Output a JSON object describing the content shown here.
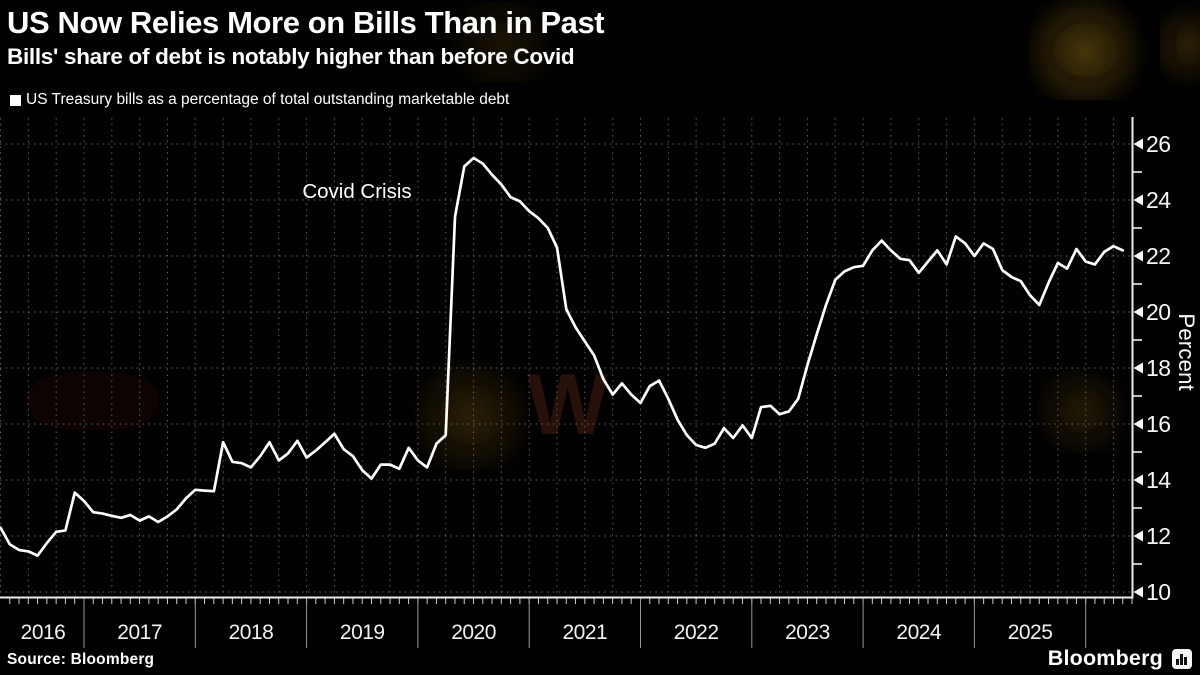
{
  "header": {
    "title": "US Now Relies More on Bills Than in Past",
    "subtitle": "Bills' share of debt is notably higher than before Covid"
  },
  "legend": {
    "swatch_color": "#ffffff"
  },
  "source": {
    "text": "Source: Bloomberg"
  },
  "brand": {
    "logo_text": "Bloomberg",
    "logo_icon": "bloomberg-bars-icon"
  },
  "colors": {
    "background": "#000000",
    "line": "#ffffff",
    "text": "#ffffff",
    "gridline": "#6f6f6f",
    "watermark": "#8c6914"
  },
  "axes": {
    "x": {
      "year_labels": [
        "2016",
        "2017",
        "2018",
        "2019",
        "2020",
        "2021",
        "2022",
        "2023",
        "2024",
        "2025"
      ]
    },
    "y": {
      "label": "Percent",
      "major_ticks": [
        26,
        24,
        22,
        20,
        18,
        16,
        14,
        12,
        10
      ]
    }
  },
  "chart_data": {
    "type": "line",
    "title": "US Now Relies More on Bills Than in Past",
    "subtitle": "Bills' share of debt is notably higher than before Covid",
    "xlabel": "",
    "ylabel": "Percent",
    "ylim": [
      10,
      26
    ],
    "xlim": [
      2016.25,
      2026.45
    ],
    "grid": "dotted; horizontal every 2 pts, vertical quarterly, year separators on axis",
    "legend_position": "top-left",
    "annotations": [
      {
        "text": "Covid Crisis",
        "x": 2019.45,
        "y": 24.3
      }
    ],
    "series": [
      {
        "name": "US Treasury bills as a percentage of total outstanding marketable debt",
        "color": "#ffffff",
        "points": [
          [
            2016.25,
            12.3
          ],
          [
            2016.333,
            11.7
          ],
          [
            2016.417,
            11.5
          ],
          [
            2016.5,
            11.45
          ],
          [
            2016.583,
            11.3
          ],
          [
            2016.667,
            11.75
          ],
          [
            2016.75,
            12.15
          ],
          [
            2016.833,
            12.2
          ],
          [
            2016.917,
            13.55
          ],
          [
            2017.0,
            13.25
          ],
          [
            2017.083,
            12.85
          ],
          [
            2017.167,
            12.8
          ],
          [
            2017.25,
            12.72
          ],
          [
            2017.333,
            12.65
          ],
          [
            2017.417,
            12.75
          ],
          [
            2017.5,
            12.55
          ],
          [
            2017.583,
            12.7
          ],
          [
            2017.667,
            12.5
          ],
          [
            2017.75,
            12.7
          ],
          [
            2017.833,
            12.95
          ],
          [
            2017.917,
            13.35
          ],
          [
            2018.0,
            13.65
          ],
          [
            2018.083,
            13.62
          ],
          [
            2018.167,
            13.6
          ],
          [
            2018.25,
            15.35
          ],
          [
            2018.333,
            14.65
          ],
          [
            2018.417,
            14.6
          ],
          [
            2018.5,
            14.45
          ],
          [
            2018.583,
            14.85
          ],
          [
            2018.667,
            15.35
          ],
          [
            2018.75,
            14.7
          ],
          [
            2018.833,
            14.95
          ],
          [
            2018.917,
            15.4
          ],
          [
            2019.0,
            14.8
          ],
          [
            2019.083,
            15.05
          ],
          [
            2019.167,
            15.35
          ],
          [
            2019.25,
            15.65
          ],
          [
            2019.333,
            15.1
          ],
          [
            2019.417,
            14.85
          ],
          [
            2019.5,
            14.35
          ],
          [
            2019.583,
            14.05
          ],
          [
            2019.667,
            14.55
          ],
          [
            2019.75,
            14.55
          ],
          [
            2019.833,
            14.4
          ],
          [
            2019.917,
            15.15
          ],
          [
            2020.0,
            14.7
          ],
          [
            2020.083,
            14.45
          ],
          [
            2020.167,
            15.3
          ],
          [
            2020.25,
            15.6
          ],
          [
            2020.333,
            23.4
          ],
          [
            2020.417,
            25.2
          ],
          [
            2020.5,
            25.5
          ],
          [
            2020.583,
            25.3
          ],
          [
            2020.667,
            24.9
          ],
          [
            2020.75,
            24.55
          ],
          [
            2020.833,
            24.1
          ],
          [
            2020.917,
            23.95
          ],
          [
            2021.0,
            23.6
          ],
          [
            2021.083,
            23.35
          ],
          [
            2021.167,
            23.0
          ],
          [
            2021.25,
            22.3
          ],
          [
            2021.333,
            20.1
          ],
          [
            2021.417,
            19.45
          ],
          [
            2021.5,
            18.95
          ],
          [
            2021.583,
            18.45
          ],
          [
            2021.667,
            17.6
          ],
          [
            2021.75,
            17.05
          ],
          [
            2021.833,
            17.45
          ],
          [
            2021.917,
            17.05
          ],
          [
            2022.0,
            16.75
          ],
          [
            2022.083,
            17.35
          ],
          [
            2022.167,
            17.55
          ],
          [
            2022.25,
            16.9
          ],
          [
            2022.333,
            16.15
          ],
          [
            2022.417,
            15.6
          ],
          [
            2022.5,
            15.25
          ],
          [
            2022.583,
            15.15
          ],
          [
            2022.667,
            15.3
          ],
          [
            2022.75,
            15.85
          ],
          [
            2022.833,
            15.5
          ],
          [
            2022.917,
            15.95
          ],
          [
            2023.0,
            15.5
          ],
          [
            2023.083,
            16.6
          ],
          [
            2023.167,
            16.65
          ],
          [
            2023.25,
            16.35
          ],
          [
            2023.333,
            16.45
          ],
          [
            2023.417,
            16.9
          ],
          [
            2023.5,
            18.1
          ],
          [
            2023.583,
            19.2
          ],
          [
            2023.667,
            20.25
          ],
          [
            2023.75,
            21.15
          ],
          [
            2023.833,
            21.45
          ],
          [
            2023.917,
            21.6
          ],
          [
            2024.0,
            21.65
          ],
          [
            2024.083,
            22.2
          ],
          [
            2024.167,
            22.55
          ],
          [
            2024.25,
            22.2
          ],
          [
            2024.333,
            21.9
          ],
          [
            2024.417,
            21.85
          ],
          [
            2024.5,
            21.4
          ],
          [
            2024.583,
            21.8
          ],
          [
            2024.667,
            22.2
          ],
          [
            2024.75,
            21.7
          ],
          [
            2024.833,
            22.7
          ],
          [
            2024.917,
            22.45
          ],
          [
            2025.0,
            22.0
          ],
          [
            2025.083,
            22.45
          ],
          [
            2025.167,
            22.25
          ],
          [
            2025.25,
            21.5
          ],
          [
            2025.333,
            21.25
          ],
          [
            2025.417,
            21.1
          ],
          [
            2025.5,
            20.6
          ],
          [
            2025.583,
            20.25
          ],
          [
            2025.667,
            21.05
          ],
          [
            2025.75,
            21.75
          ],
          [
            2025.833,
            21.55
          ],
          [
            2025.917,
            22.25
          ],
          [
            2026.0,
            21.8
          ],
          [
            2026.083,
            21.7
          ],
          [
            2026.167,
            22.15
          ],
          [
            2026.25,
            22.35
          ],
          [
            2026.333,
            22.2
          ]
        ]
      }
    ]
  }
}
